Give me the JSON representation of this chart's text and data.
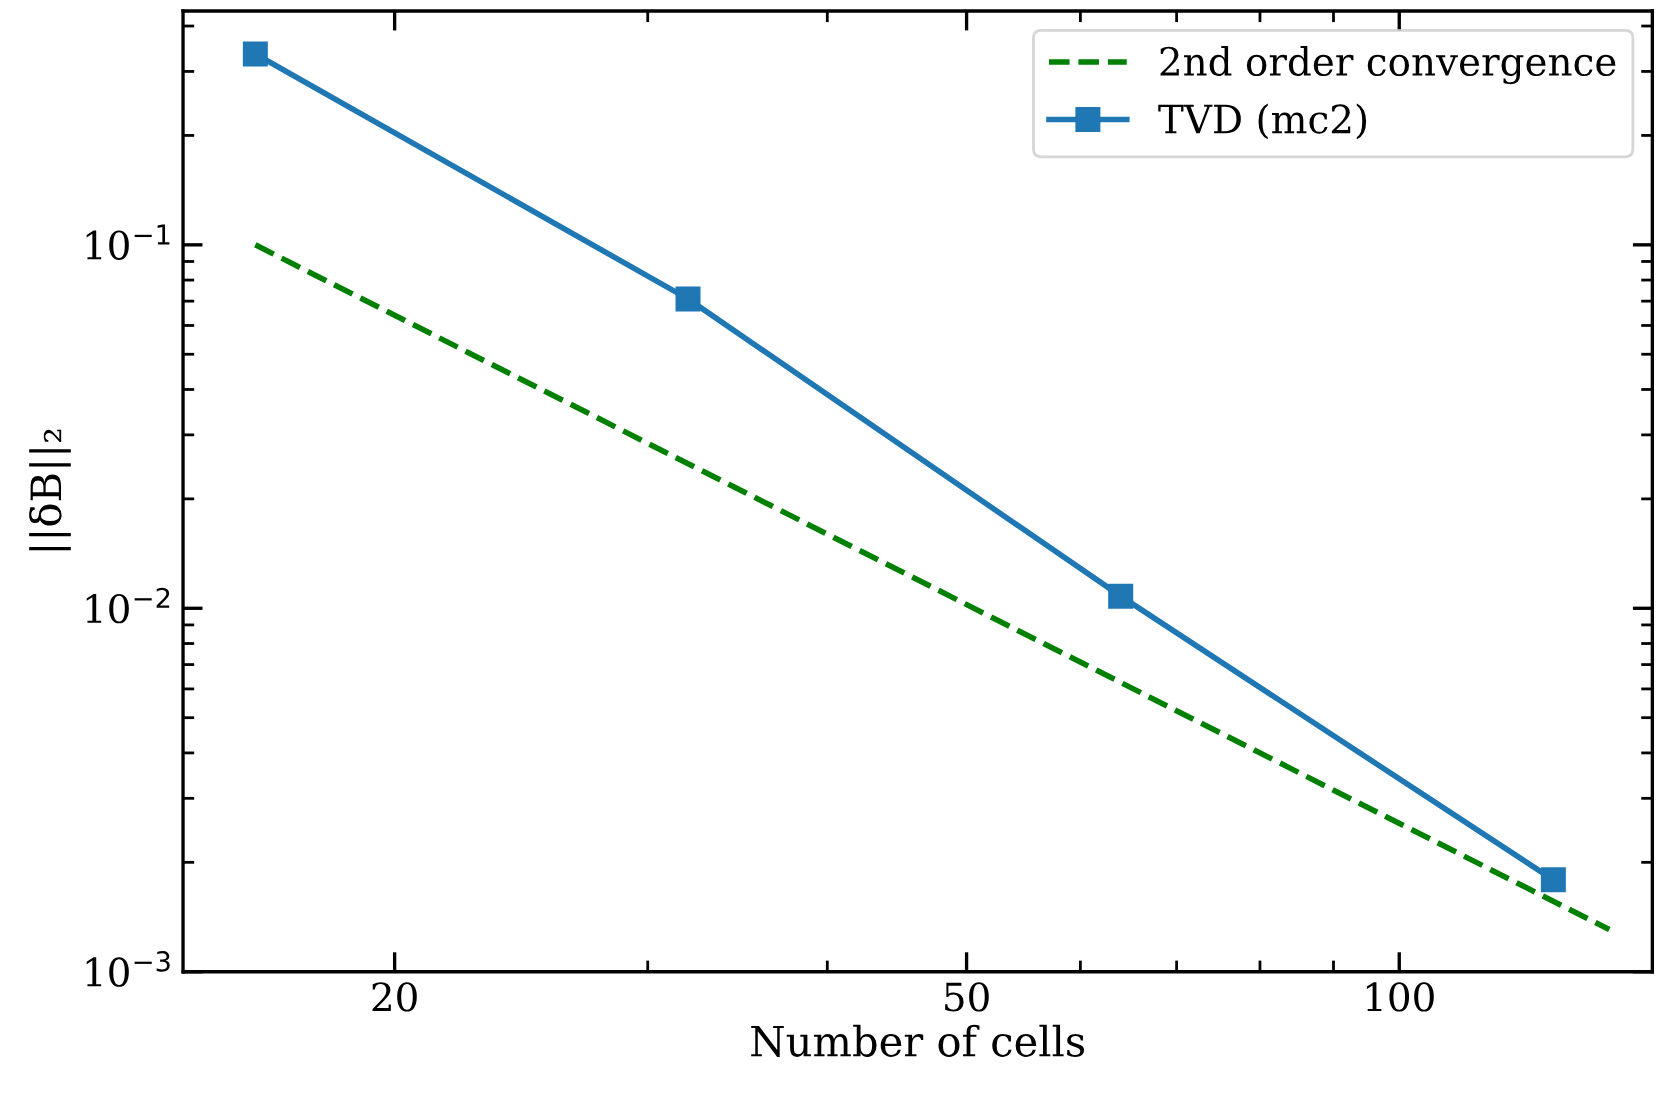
{
  "chart_data": {
    "type": "line",
    "xlabel": "Number of cells",
    "ylabel": "||δB||₂",
    "log": "xy",
    "xlim": [
      14.25,
      150
    ],
    "ylim": [
      0.001,
      0.44
    ],
    "xticks": [
      20,
      50,
      100
    ],
    "yticks": [
      {
        "value": 0.001,
        "label": "10$^{−3}$"
      },
      {
        "value": 0.01,
        "label": "10$^{−2}$"
      },
      {
        "value": 0.1,
        "label": "10$^{−1}$"
      }
    ],
    "grid": false,
    "legend": "top right",
    "series": [
      {
        "name": "2nd order convergence",
        "color": "#008000",
        "x": [
          16,
          140
        ],
        "values": [
          0.1,
          0.001306
        ],
        "marker": "none",
        "line_style": "dashed"
      },
      {
        "name": "TVD (mc2)",
        "color": "#1f77b4",
        "x": [
          16,
          32,
          64,
          128
        ],
        "values": [
          0.335,
          0.071,
          0.0108,
          0.00179
        ],
        "marker": "square",
        "line_style": "solid"
      }
    ]
  }
}
